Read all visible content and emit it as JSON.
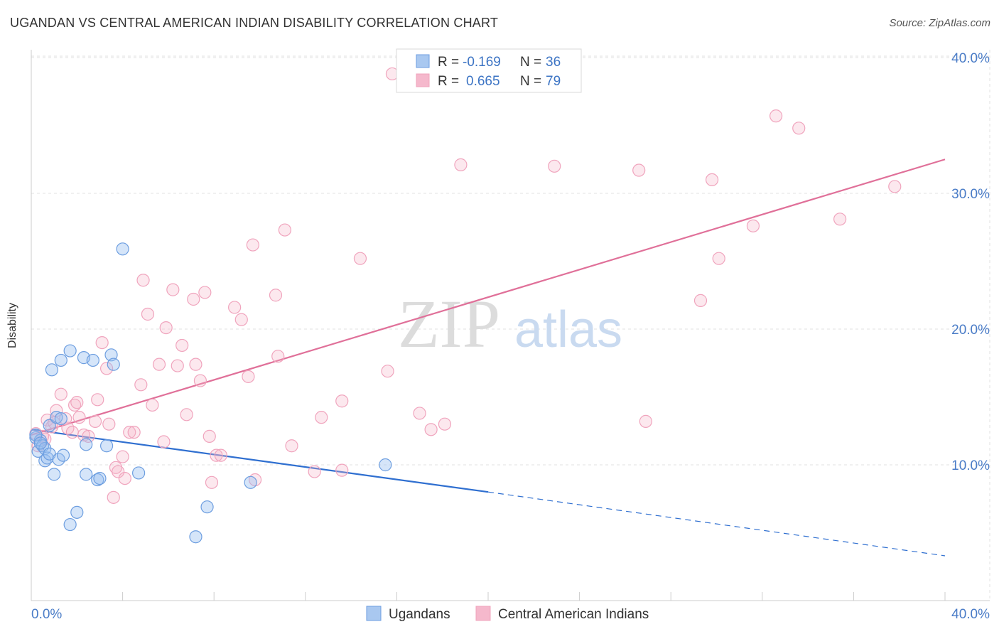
{
  "title": "UGANDAN VS CENTRAL AMERICAN INDIAN DISABILITY CORRELATION CHART",
  "source": "Source: ZipAtlas.com",
  "watermark": {
    "zip": "ZIP",
    "atlas": "atlas"
  },
  "legend": {
    "r_label": "R =",
    "n_label": "N =",
    "rows": [
      {
        "r": "-0.169",
        "n": "36",
        "color": "#a9c8f0"
      },
      {
        "r": "0.665",
        "n": "79",
        "color": "#f5b8cc"
      }
    ]
  },
  "chart_data": {
    "type": "scatter",
    "title": "UGANDAN VS CENTRAL AMERICAN INDIAN DISABILITY CORRELATION CHART",
    "xlabel": "",
    "ylabel": "Disability",
    "xlim": [
      0,
      40
    ],
    "ylim": [
      0,
      40
    ],
    "x_tick_labels": [
      "0.0%",
      "40.0%"
    ],
    "y_ticks": [
      10,
      20,
      30,
      40
    ],
    "y_tick_labels": [
      "10.0%",
      "20.0%",
      "30.0%",
      "40.0%"
    ],
    "grid": true,
    "legend_position": "top-center",
    "series": [
      {
        "name": "Ugandans",
        "color": "#6d9ee0",
        "trend": {
          "x0": 0,
          "y0": 12.6,
          "x1": 20,
          "y1": 8.0,
          "x_dash_end": 40,
          "y_dash_end": 3.3
        },
        "points": [
          [
            0.2,
            12.0
          ],
          [
            0.3,
            11.0
          ],
          [
            0.4,
            11.8
          ],
          [
            0.5,
            11.4
          ],
          [
            0.6,
            11.2
          ],
          [
            0.6,
            10.3
          ],
          [
            0.7,
            10.5
          ],
          [
            0.8,
            12.9
          ],
          [
            0.8,
            10.8
          ],
          [
            0.9,
            17.0
          ],
          [
            1.0,
            9.3
          ],
          [
            1.1,
            13.5
          ],
          [
            1.2,
            10.4
          ],
          [
            1.3,
            13.4
          ],
          [
            1.3,
            17.7
          ],
          [
            1.4,
            10.7
          ],
          [
            1.7,
            18.4
          ],
          [
            1.7,
            5.6
          ],
          [
            2.0,
            6.5
          ],
          [
            2.3,
            17.9
          ],
          [
            2.4,
            9.3
          ],
          [
            2.4,
            11.5
          ],
          [
            2.7,
            17.7
          ],
          [
            2.9,
            8.9
          ],
          [
            3.0,
            9.0
          ],
          [
            3.3,
            11.4
          ],
          [
            3.5,
            18.1
          ],
          [
            3.6,
            17.4
          ],
          [
            4.0,
            25.9
          ],
          [
            4.7,
            9.4
          ],
          [
            7.2,
            4.7
          ],
          [
            7.7,
            6.9
          ],
          [
            9.6,
            8.7
          ],
          [
            15.5,
            10.0
          ],
          [
            0.2,
            12.2
          ],
          [
            0.4,
            11.6
          ]
        ]
      },
      {
        "name": "Central American Indians",
        "color": "#f0a4bd",
        "trend": {
          "x0": 0,
          "y0": 12.2,
          "x1": 40,
          "y1": 32.5
        },
        "points": [
          [
            0.2,
            12.3
          ],
          [
            0.3,
            11.4
          ],
          [
            0.5,
            12.1
          ],
          [
            0.6,
            11.9
          ],
          [
            0.7,
            13.3
          ],
          [
            0.9,
            12.8
          ],
          [
            1.1,
            14.0
          ],
          [
            1.3,
            15.2
          ],
          [
            1.5,
            13.4
          ],
          [
            1.6,
            12.7
          ],
          [
            1.8,
            12.4
          ],
          [
            1.9,
            14.4
          ],
          [
            2.1,
            13.5
          ],
          [
            2.3,
            12.2
          ],
          [
            2.5,
            12.1
          ],
          [
            2.8,
            13.2
          ],
          [
            2.9,
            14.8
          ],
          [
            3.1,
            19.0
          ],
          [
            3.3,
            17.1
          ],
          [
            3.4,
            13.0
          ],
          [
            3.6,
            7.6
          ],
          [
            3.7,
            9.8
          ],
          [
            3.8,
            9.5
          ],
          [
            4.0,
            10.6
          ],
          [
            4.1,
            9.0
          ],
          [
            4.3,
            12.4
          ],
          [
            4.5,
            12.4
          ],
          [
            4.8,
            15.9
          ],
          [
            4.9,
            23.6
          ],
          [
            5.1,
            21.1
          ],
          [
            5.3,
            14.4
          ],
          [
            5.6,
            17.4
          ],
          [
            5.8,
            11.7
          ],
          [
            5.9,
            20.1
          ],
          [
            6.2,
            22.9
          ],
          [
            6.4,
            17.3
          ],
          [
            6.6,
            18.8
          ],
          [
            6.8,
            13.7
          ],
          [
            7.1,
            22.2
          ],
          [
            7.2,
            17.4
          ],
          [
            7.4,
            16.2
          ],
          [
            7.6,
            22.7
          ],
          [
            7.8,
            12.1
          ],
          [
            7.9,
            8.7
          ],
          [
            8.1,
            10.7
          ],
          [
            8.3,
            10.7
          ],
          [
            8.9,
            21.6
          ],
          [
            9.2,
            20.7
          ],
          [
            9.5,
            16.5
          ],
          [
            9.7,
            26.2
          ],
          [
            9.8,
            8.9
          ],
          [
            10.7,
            22.5
          ],
          [
            10.8,
            18.0
          ],
          [
            11.1,
            27.3
          ],
          [
            11.4,
            11.4
          ],
          [
            12.4,
            9.5
          ],
          [
            12.7,
            13.5
          ],
          [
            13.6,
            14.7
          ],
          [
            13.6,
            9.6
          ],
          [
            14.4,
            25.2
          ],
          [
            15.6,
            16.9
          ],
          [
            15.8,
            38.8
          ],
          [
            17.0,
            13.8
          ],
          [
            17.5,
            12.6
          ],
          [
            18.1,
            13.0
          ],
          [
            18.8,
            32.1
          ],
          [
            22.9,
            32.0
          ],
          [
            26.6,
            31.7
          ],
          [
            26.9,
            13.2
          ],
          [
            29.3,
            22.1
          ],
          [
            29.8,
            31.0
          ],
          [
            30.1,
            25.2
          ],
          [
            31.6,
            27.6
          ],
          [
            32.6,
            35.7
          ],
          [
            33.6,
            34.8
          ],
          [
            35.4,
            28.1
          ],
          [
            37.8,
            30.5
          ],
          [
            2.0,
            14.6
          ],
          [
            1.0,
            13.1
          ]
        ]
      }
    ]
  }
}
